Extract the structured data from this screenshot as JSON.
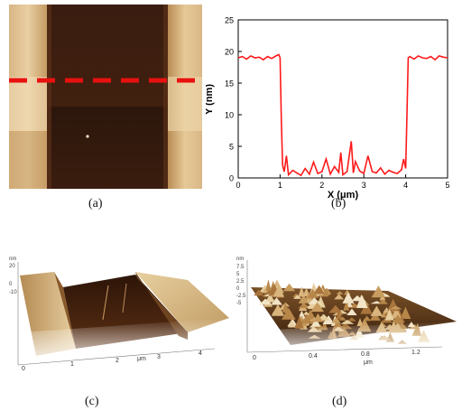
{
  "panels": {
    "a": {
      "caption": "(a)"
    },
    "b": {
      "caption": "(b)"
    },
    "c": {
      "caption": "(c)",
      "z_unit": "nm",
      "z_ticks": [
        "20",
        "0",
        "-10"
      ],
      "x_ticks": [
        "0",
        "1",
        "2",
        "3",
        "4"
      ],
      "x_unit": "μm"
    },
    "d": {
      "caption": "(d)",
      "z_unit": "nm",
      "z_ticks": [
        "7.5",
        "5",
        "2.5",
        "0",
        "-2.5",
        "-5"
      ],
      "x_ticks": [
        "0",
        "0.4",
        "0.8",
        "1.2"
      ],
      "x_unit": "μm"
    }
  },
  "colors": {
    "profile_line": "#ff1a1a",
    "scan_line": "#e8110f",
    "stripe_edge": "#d6b07a",
    "trench": "#3a1d10"
  },
  "chart_data": {
    "type": "line",
    "title": "",
    "xlabel": "X (μm)",
    "ylabel": "Y (nm)",
    "xlim": [
      0,
      5
    ],
    "ylim": [
      0,
      25
    ],
    "xticks": [
      0,
      1,
      2,
      3,
      4,
      5
    ],
    "yticks": [
      0,
      5,
      10,
      15,
      20,
      25
    ],
    "grid": false,
    "legend": "none",
    "series": [
      {
        "x": [
          0,
          0.1,
          0.2,
          0.3,
          0.4,
          0.5,
          0.6,
          0.7,
          0.8,
          0.9,
          0.97,
          1.0,
          1.03,
          1.06,
          1.1,
          1.15,
          1.2,
          1.3,
          1.4,
          1.5,
          1.6,
          1.7,
          1.8,
          1.9,
          2.0,
          2.1,
          2.2,
          2.3,
          2.4,
          2.45,
          2.5,
          2.6,
          2.7,
          2.75,
          2.8,
          2.9,
          3.0,
          3.1,
          3.2,
          3.3,
          3.4,
          3.5,
          3.6,
          3.7,
          3.8,
          3.9,
          3.95,
          4.0,
          4.03,
          4.06,
          4.1,
          4.2,
          4.3,
          4.4,
          4.5,
          4.6,
          4.7,
          4.8,
          4.9,
          5.0
        ],
        "y": [
          19,
          19.2,
          18.8,
          19.3,
          19.0,
          19.1,
          18.7,
          19.2,
          18.9,
          19.3,
          19.5,
          19.0,
          9.0,
          2.0,
          1.0,
          3.5,
          0.5,
          1.2,
          0.8,
          0.4,
          1.5,
          0.6,
          2.5,
          0.7,
          1.0,
          3.0,
          0.6,
          1.8,
          0.9,
          4.0,
          0.5,
          1.0,
          5.8,
          0.8,
          2.6,
          1.1,
          0.7,
          3.5,
          1.0,
          0.8,
          1.6,
          0.6,
          1.2,
          0.9,
          0.7,
          1.3,
          3.0,
          1.5,
          10.0,
          19.0,
          19.2,
          18.8,
          19.3,
          19.0,
          18.9,
          19.2,
          18.7,
          19.3,
          19.1,
          19.0
        ]
      }
    ]
  }
}
